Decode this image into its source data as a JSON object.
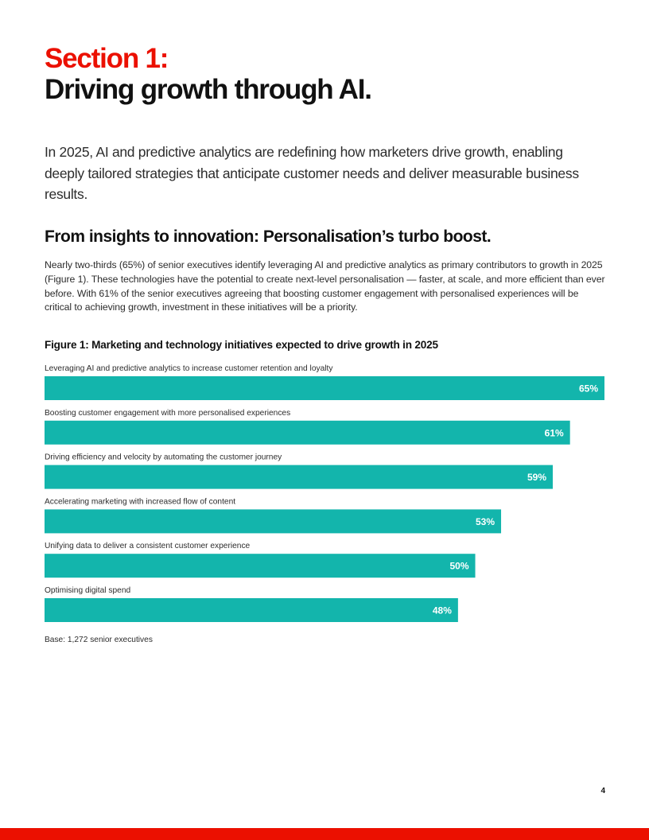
{
  "heading": {
    "section_label": "Section 1:",
    "title": "Driving growth through AI."
  },
  "intro": "In 2025, AI and predictive analytics are redefining how marketers drive growth, enabling deeply tailored strategies that anticipate customer needs and deliver measurable business results.",
  "subheading": "From insights to innovation: Personalisation’s turbo boost.",
  "body": "Nearly two-thirds (65%) of senior executives identify leveraging AI and predictive analytics as primary contributors to growth in 2025 (Figure 1). These technologies have the potential to create next-level personalisation — faster, at scale, and more efficient than ever before. With 61% of the senior executives agreeing that boosting customer engagement with personalised experiences will be critical to achieving growth, investment in these initiatives will be a priority.",
  "chart_data": {
    "type": "bar",
    "orientation": "horizontal",
    "title": "Figure 1: Marketing and technology initiatives expected to drive growth in 2025",
    "categories": [
      "Leveraging AI and predictive analytics to increase customer retention and loyalty",
      "Boosting customer engagement with more personalised experiences",
      "Driving efficiency and velocity by automating the customer journey",
      "Accelerating marketing with increased flow of content",
      "Unifying data to deliver a consistent customer experience",
      "Optimising digital spend"
    ],
    "values": [
      65,
      61,
      59,
      53,
      50,
      48
    ],
    "value_labels": [
      "65%",
      "61%",
      "59%",
      "53%",
      "50%",
      "48%"
    ],
    "unit": "%",
    "xlim": [
      0,
      65
    ],
    "bar_color": "#13b5ac",
    "label_color": "#ffffff",
    "note": "Base: 1,272 senior executives"
  },
  "footer": {
    "page_number": "4",
    "accent_color": "#eb1000"
  }
}
